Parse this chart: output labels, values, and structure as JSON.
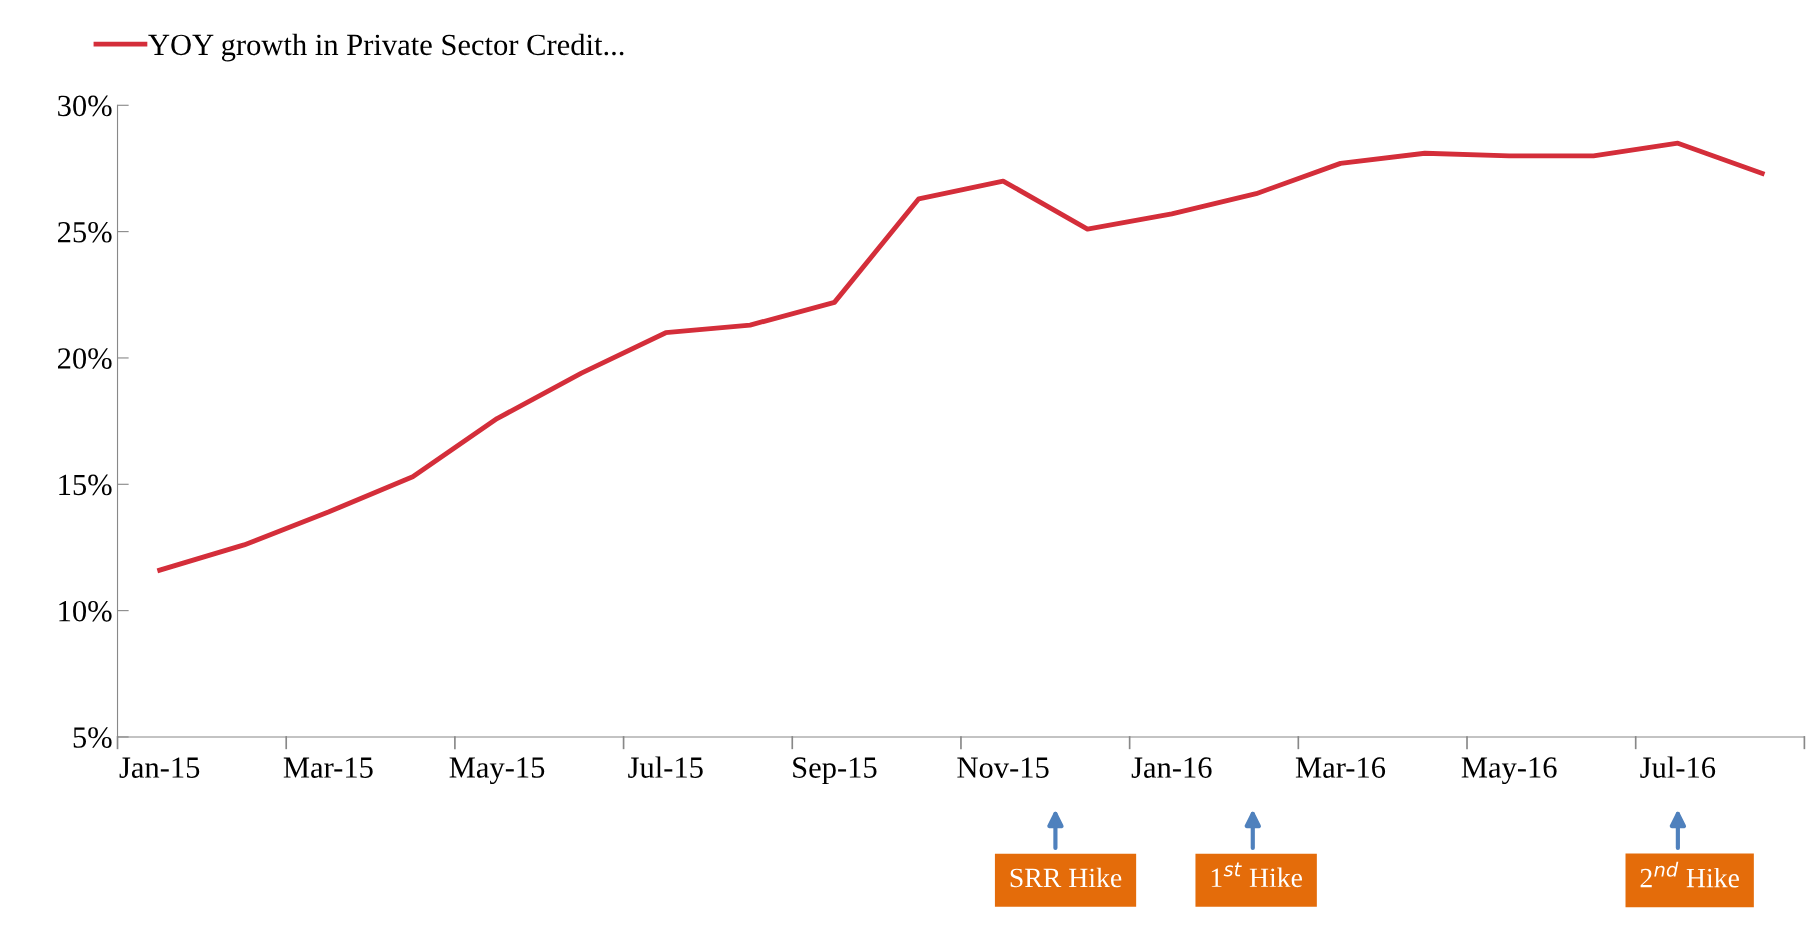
{
  "chart_data": {
    "type": "line",
    "categories": [
      "Jan-15",
      null,
      "Mar-15",
      null,
      "May-15",
      null,
      "Jul-15",
      null,
      "Sep-15",
      null,
      "Nov-15",
      null,
      "Jan-16",
      null,
      "Mar-16",
      null,
      "May-16",
      null,
      "Jul-16",
      null
    ],
    "series": [
      {
        "name": "YOY growth in Private Sector Credit...",
        "color": "#d42e3a",
        "values": [
          11.6,
          12.6,
          13.9,
          15.3,
          17.6,
          19.4,
          21.0,
          21.3,
          22.2,
          26.3,
          27.0,
          25.1,
          25.7,
          26.5,
          27.7,
          28.1,
          28.0,
          28.0,
          28.5,
          27.3
        ]
      }
    ],
    "ylim": [
      5,
      30
    ],
    "yticks": [
      {
        "value": 5,
        "label": "5%"
      },
      {
        "value": 10,
        "label": "10%"
      },
      {
        "value": 15,
        "label": "15%"
      },
      {
        "value": 20,
        "label": "20%"
      },
      {
        "value": 25,
        "label": "25%"
      },
      {
        "value": 30,
        "label": "30%"
      }
    ],
    "annotations": [
      "SRR Hike",
      "1$^{st}$ Hike",
      "2$^{nd}$ Hike"
    ],
    "legend": "top left",
    "grid": false,
    "marker": "none",
    "line_style": "solid"
  }
}
